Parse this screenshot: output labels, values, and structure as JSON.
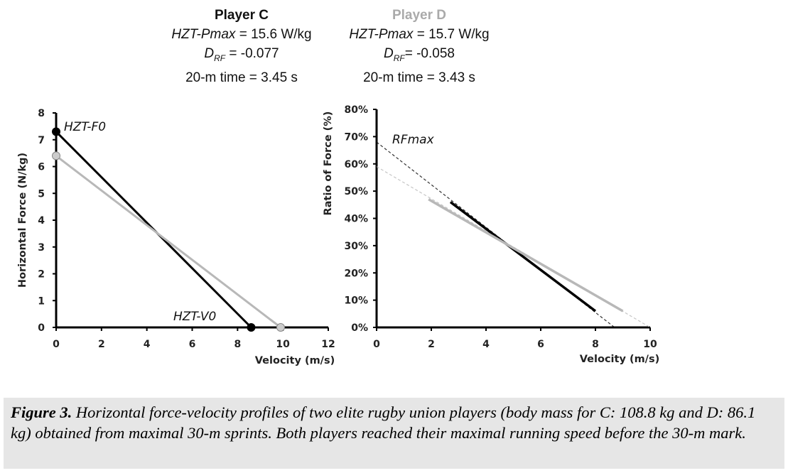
{
  "header": {
    "player_c": {
      "name": "Player  C",
      "pmax_label": "HZT-Pmax",
      "pmax_value": " = 15.6 W/kg",
      "drf_label": "D",
      "drf_sub": "RF",
      "drf_value": " = -0.077",
      "time": "20-m time = 3.45 s"
    },
    "player_d": {
      "name": "Player D",
      "pmax_label": "HZT-Pmax",
      "pmax_value": " = 15.7 W/kg",
      "drf_label": "D",
      "drf_sub": "RF",
      "drf_value": "= -0.058",
      "time": "20-m time = 3.43 s"
    }
  },
  "colors": {
    "player_c": "#000000",
    "player_d": "#b8b8b8",
    "caption_bg": "#e6e6e6"
  },
  "chart_data": [
    {
      "type": "line",
      "xlabel": "Velocity (m/s)",
      "ylabel": "Horizontal Force (N/kg)",
      "xlim": [
        0,
        12
      ],
      "ylim": [
        0,
        8
      ],
      "xticks": [
        "0",
        "2",
        "4",
        "6",
        "8",
        "10",
        "12"
      ],
      "yticks": [
        "0",
        "1",
        "2",
        "3",
        "4",
        "5",
        "6",
        "7",
        "8"
      ],
      "grid": false,
      "annotations": [
        "HZT-F0",
        "HZT-V0"
      ],
      "series": [
        {
          "player": "C",
          "color": "#000000",
          "x": [
            0,
            8.6
          ],
          "y": [
            7.3,
            0
          ],
          "markers": true
        },
        {
          "player": "D",
          "color": "#b8b8b8",
          "x": [
            0,
            9.9
          ],
          "y": [
            6.4,
            0
          ],
          "markers": true
        }
      ]
    },
    {
      "type": "line",
      "xlabel": "Velocity (m/s)",
      "ylabel": "Ratio of Force (%)",
      "xlim": [
        0,
        10
      ],
      "ylim": [
        0,
        80
      ],
      "xticks": [
        "0",
        "2",
        "4",
        "6",
        "8",
        "10"
      ],
      "yticks": [
        "0%",
        "10%",
        "20%",
        "30%",
        "40%",
        "50%",
        "60%",
        "70%",
        "80%"
      ],
      "grid": false,
      "annotations": [
        "RFmax"
      ],
      "series": [
        {
          "player": "C",
          "color": "#000000",
          "x": [
            2.7,
            8.0
          ],
          "y": [
            46,
            6
          ],
          "extrapolated": {
            "x": [
              0,
              8.7
            ],
            "y": [
              68,
              0
            ]
          }
        },
        {
          "player": "D",
          "color": "#b8b8b8",
          "x": [
            1.9,
            9.0
          ],
          "y": [
            47,
            6
          ],
          "extrapolated": {
            "x": [
              0,
              10
            ],
            "y": [
              59,
              0
            ]
          }
        }
      ]
    }
  ],
  "caption": {
    "label": "Figure 3.",
    "text": " Horizontal force-velocity profiles of two elite rugby union players (body mass for C: 108.8 kg and D: 86.1 kg) obtained from maximal 30-m sprints. Both players reached their maximal running speed before the 30-m mark."
  }
}
